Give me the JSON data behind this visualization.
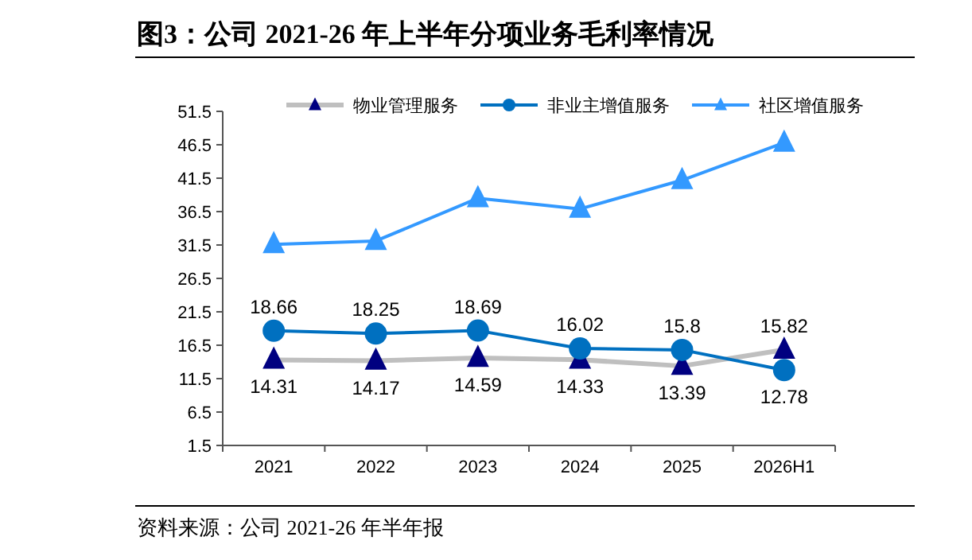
{
  "chart_data": {
    "type": "line",
    "title": "图3：公司 2021-26 年上半年分项业务毛利率情况",
    "annotations": [
      "资料来源：公司 2021-26 年半年报"
    ],
    "categories": [
      "2021",
      "2022",
      "2023",
      "2024",
      "2025",
      "2026H1"
    ],
    "series": [
      {
        "name": "物业管理服务",
        "color": "#bfbfbf",
        "colors": [
          "#000080",
          "#000080",
          "#000080",
          "#000080",
          "#000080",
          "#000080"
        ],
        "marker": "triangle",
        "values": [
          14.31,
          14.17,
          14.59,
          14.33,
          13.39,
          15.82
        ],
        "value_labels": [
          "14.31",
          "14.17",
          "14.59",
          "14.33",
          "13.39",
          "15.82"
        ]
      },
      {
        "name": "非业主增值服务",
        "color": "#0070c0",
        "marker": "circle",
        "values": [
          18.66,
          18.25,
          18.69,
          16.02,
          15.8,
          12.78
        ],
        "value_labels": [
          "18.66",
          "18.25",
          "18.69",
          "16.02",
          "15.8",
          "12.78"
        ]
      },
      {
        "name": "社区增值服务",
        "color": "#3399ff",
        "marker": "triangle",
        "values": [
          31.6,
          32.1,
          38.5,
          36.9,
          41.2,
          46.8
        ]
      }
    ],
    "ylim": [
      1.5,
      51.5
    ],
    "yticks": [
      1.5,
      6.5,
      11.5,
      16.5,
      21.5,
      26.5,
      31.5,
      36.5,
      41.5,
      46.5,
      51.5
    ],
    "grid": false,
    "legend": "top"
  }
}
